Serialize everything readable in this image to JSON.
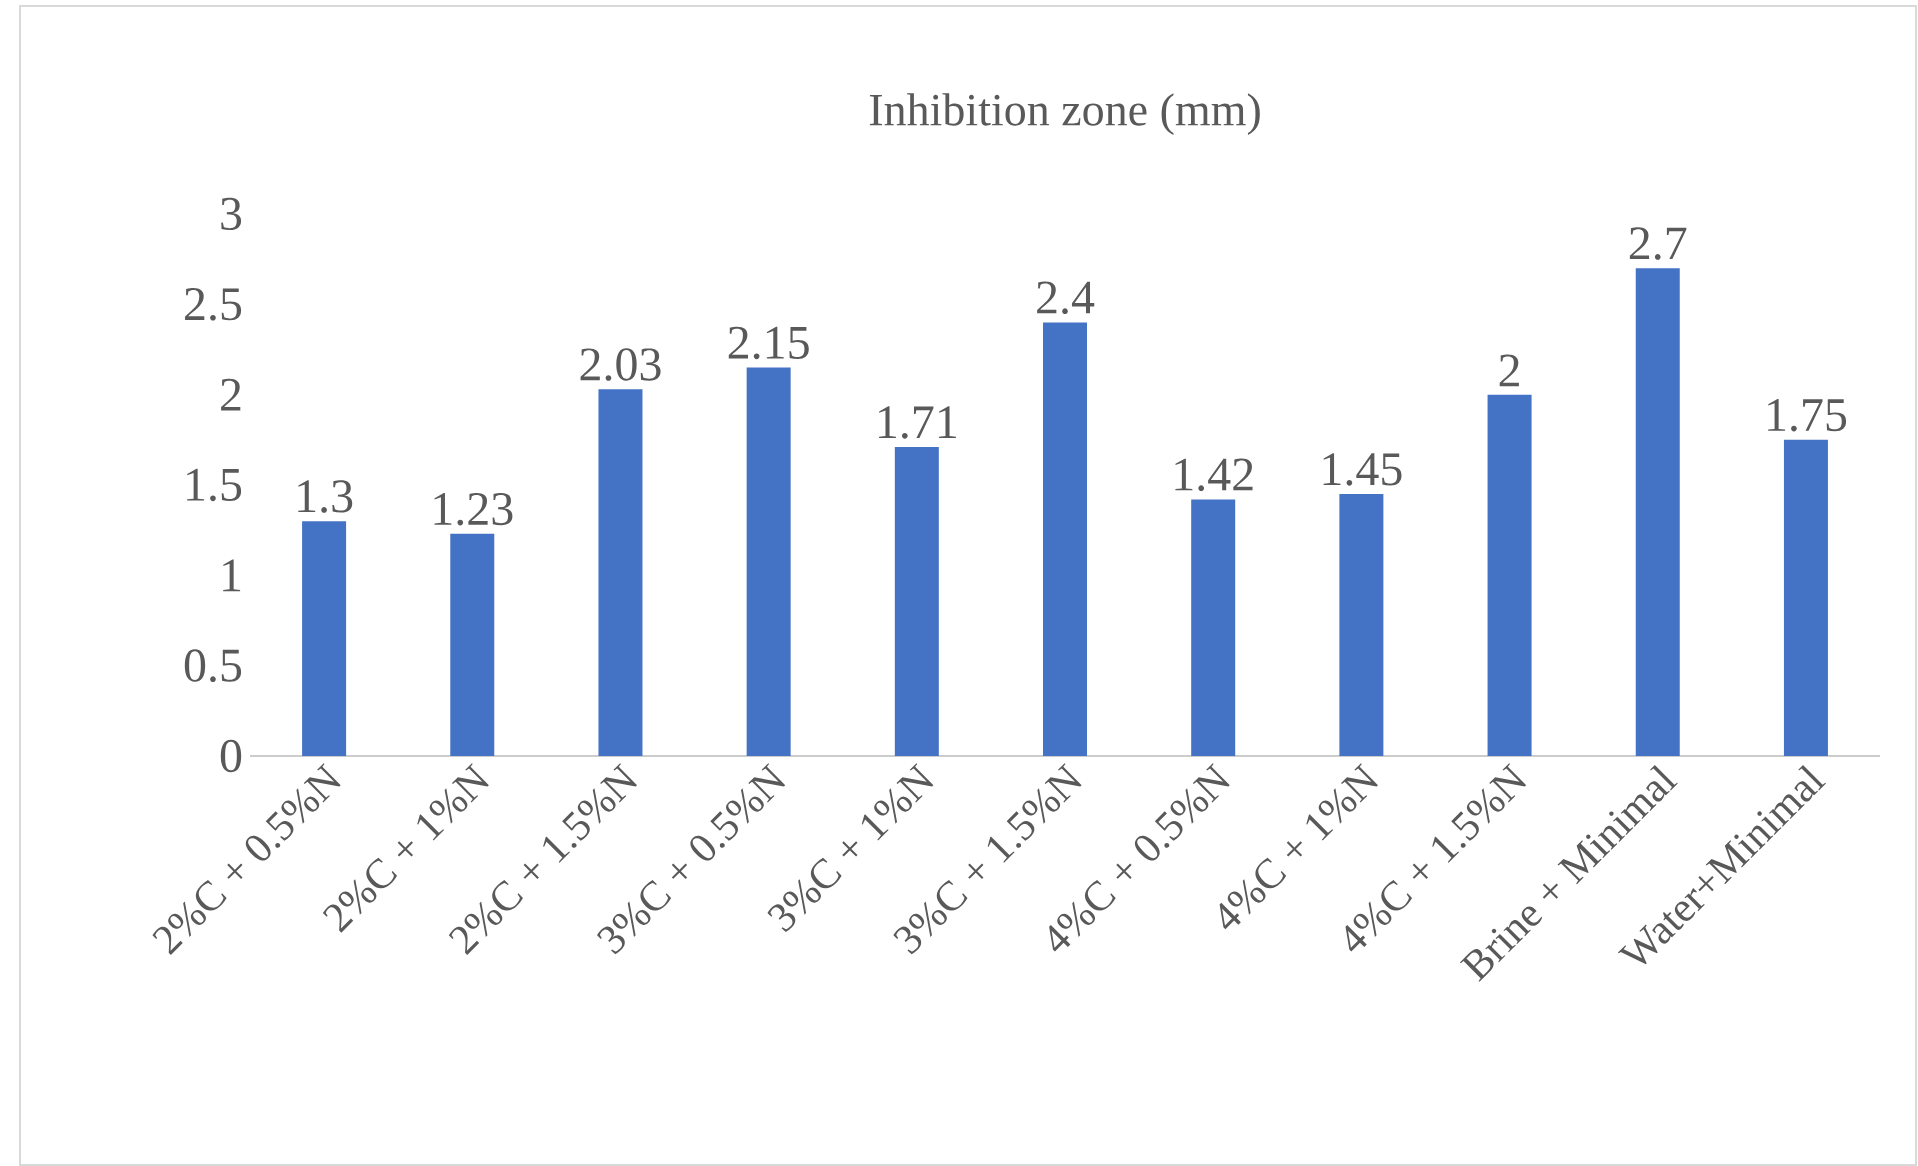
{
  "chart_data": {
    "type": "bar",
    "title": "Inhibition zone (mm)",
    "categories": [
      "2%C + 0.5%N",
      "2%C + 1%N",
      "2%C + 1.5%N",
      "3%C + 0.5%N",
      "3%C + 1%N",
      "3%C + 1.5%N",
      "4%C + 0.5%N",
      "4%C + 1%N",
      "4%C + 1.5%N",
      "Brine + Minimal",
      "Water+Minimal"
    ],
    "values": [
      1.3,
      1.23,
      2.03,
      2.15,
      1.71,
      2.4,
      1.42,
      1.45,
      2,
      2.7,
      1.75
    ],
    "color": "#4472c4",
    "ylim": [
      0,
      3
    ],
    "yticks": [
      0,
      0.5,
      1,
      1.5,
      2,
      2.5,
      3
    ],
    "data_labels": true
  }
}
